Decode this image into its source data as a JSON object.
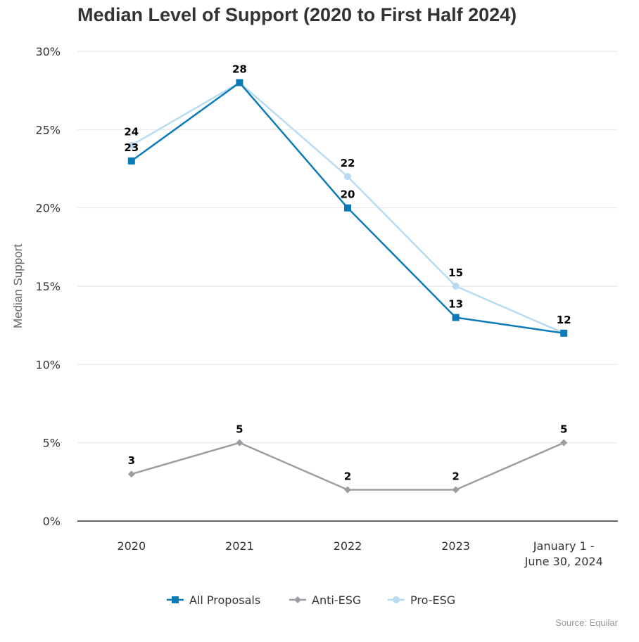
{
  "chart_data": {
    "type": "line",
    "title": "Median Level of Support (2020 to First Half 2024)",
    "ylabel": "Median Support",
    "xlabel": "",
    "categories": [
      [
        "2020"
      ],
      [
        "2021"
      ],
      [
        "2022"
      ],
      [
        "2023"
      ],
      [
        "January 1 -",
        "June 30, 2024"
      ]
    ],
    "ylim": [
      0,
      30
    ],
    "yticks": [
      0,
      5,
      10,
      15,
      20,
      25,
      30
    ],
    "ytick_suffix": "%",
    "grid": true,
    "legend_position": "bottom",
    "series": [
      {
        "name": "All Proposals",
        "values": [
          23,
          28,
          20,
          13,
          12
        ],
        "color": "#0d7ab8",
        "marker": "square",
        "label_side": "below"
      },
      {
        "name": "Anti-ESG",
        "values": [
          3,
          5,
          2,
          2,
          5
        ],
        "color": "#9a9ea3",
        "marker": "diamond",
        "label_side": "above"
      },
      {
        "name": "Pro-ESG",
        "values": [
          24,
          28,
          22,
          15,
          12
        ],
        "color": "#b7dcf1",
        "marker": "circle",
        "label_side": "above"
      }
    ],
    "source": "Source: Equilar"
  }
}
